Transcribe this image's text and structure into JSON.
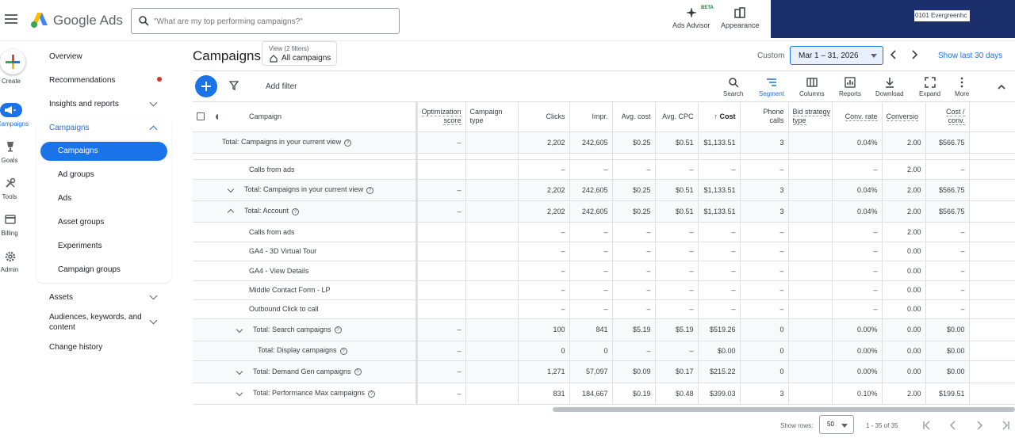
{
  "app": {
    "name": "Google Ads"
  },
  "search": {
    "placeholder": "\"What are my top performing campaigns?\""
  },
  "header_tools": [
    {
      "label": "Ads Advisor",
      "icon": "sparkle-icon",
      "badge": "BETA"
    },
    {
      "label": "Appearance",
      "icon": "appearance-icon"
    }
  ],
  "account": {
    "id_fragment": "0101 Evergreenhc"
  },
  "rail": [
    {
      "label": "Create",
      "icon": "plus-icon"
    },
    {
      "label": "Campaigns",
      "icon": "megaphone-icon"
    },
    {
      "label": "Goals",
      "icon": "trophy-icon"
    },
    {
      "label": "Tools",
      "icon": "tools-icon"
    },
    {
      "label": "Billing",
      "icon": "card-icon"
    },
    {
      "label": "Admin",
      "icon": "gear-icon"
    }
  ],
  "nav": {
    "overview": "Overview",
    "recommendations": "Recommendations",
    "insights": "Insights and reports",
    "campaigns": "Campaigns",
    "sub": [
      "Campaigns",
      "Ad groups",
      "Ads",
      "Asset groups",
      "Experiments",
      "Campaign groups"
    ],
    "assets": "Assets",
    "audiences_line1": "Audiences, keywords, and",
    "audiences_line2": "content",
    "change_history": "Change history"
  },
  "page": {
    "title": "Campaigns",
    "view_label": "View (2 filters)",
    "view_value": "All campaigns",
    "date_label": "Custom",
    "date_range": "Mar 1 – 31, 2026",
    "show_last": "Show last 30 days"
  },
  "toolbar": {
    "add_filter": "Add filter",
    "buttons": [
      "Search",
      "Segment",
      "Columns",
      "Reports",
      "Download",
      "Expand",
      "More"
    ]
  },
  "table": {
    "headers": {
      "campaign": "Campaign",
      "opt_1": "Optimization",
      "opt_2": "score",
      "type_1": "Campaign",
      "type_2": "type",
      "clicks": "Clicks",
      "impr": "Impr.",
      "avg_cost": "Avg. cost",
      "avg_cpc": "Avg. CPC",
      "cost": "Cost",
      "phone_1": "Phone",
      "phone_2": "calls",
      "bid_1": "Bid strategy",
      "bid_2": "type",
      "conv_rate": "Conv. rate",
      "conversions": "Conversio",
      "cpc_1": "Cost /",
      "cpc_2": "conv."
    },
    "rows": [
      {
        "name": "Total: Campaigns in your current view",
        "opt": "–",
        "clicks": "2,202",
        "impr": "242,605",
        "avg_cost": "$0.25",
        "avg_cpc": "$0.51",
        "cost": "$1,133.51",
        "phone": "3",
        "conv_rate": "0.04%",
        "conv": "2.00",
        "cost_conv": "$566.75"
      },
      {
        "name": "Calls from ads",
        "opt": "",
        "clicks": "–",
        "impr": "–",
        "avg_cost": "–",
        "avg_cpc": "–",
        "cost": "–",
        "phone": "–",
        "conv_rate": "–",
        "conv": "2.00",
        "cost_conv": "–"
      },
      {
        "name": "Total: Campaigns in your current view",
        "opt": "–",
        "clicks": "2,202",
        "impr": "242,605",
        "avg_cost": "$0.25",
        "avg_cpc": "$0.51",
        "cost": "$1,133.51",
        "phone": "3",
        "conv_rate": "0.04%",
        "conv": "2.00",
        "cost_conv": "$566.75"
      },
      {
        "name": "Total: Account",
        "opt": "–",
        "clicks": "2,202",
        "impr": "242,605",
        "avg_cost": "$0.25",
        "avg_cpc": "$0.51",
        "cost": "$1,133.51",
        "phone": "3",
        "conv_rate": "0.04%",
        "conv": "2.00",
        "cost_conv": "$566.75"
      },
      {
        "name": "Calls from ads",
        "opt": "",
        "clicks": "–",
        "impr": "–",
        "avg_cost": "–",
        "avg_cpc": "–",
        "cost": "–",
        "phone": "–",
        "conv_rate": "–",
        "conv": "2.00",
        "cost_conv": "–"
      },
      {
        "name": "GA4 - 3D Virtual Tour",
        "opt": "",
        "clicks": "–",
        "impr": "–",
        "avg_cost": "–",
        "avg_cpc": "–",
        "cost": "–",
        "phone": "–",
        "conv_rate": "–",
        "conv": "0.00",
        "cost_conv": "–"
      },
      {
        "name": "GA4 - View Details",
        "opt": "",
        "clicks": "–",
        "impr": "–",
        "avg_cost": "–",
        "avg_cpc": "–",
        "cost": "–",
        "phone": "–",
        "conv_rate": "–",
        "conv": "0.00",
        "cost_conv": "–"
      },
      {
        "name": "Middle Contact Form - LP",
        "opt": "",
        "clicks": "–",
        "impr": "–",
        "avg_cost": "–",
        "avg_cpc": "–",
        "cost": "–",
        "phone": "–",
        "conv_rate": "–",
        "conv": "0.00",
        "cost_conv": "–"
      },
      {
        "name": "Outbound Click to call",
        "opt": "",
        "clicks": "–",
        "impr": "–",
        "avg_cost": "–",
        "avg_cpc": "–",
        "cost": "–",
        "phone": "–",
        "conv_rate": "–",
        "conv": "0.00",
        "cost_conv": "–"
      },
      {
        "name": "Total: Search campaigns",
        "opt": "–",
        "clicks": "100",
        "impr": "841",
        "avg_cost": "$5.19",
        "avg_cpc": "$5.19",
        "cost": "$519.26",
        "phone": "0",
        "conv_rate": "0.00%",
        "conv": "0.00",
        "cost_conv": "$0.00"
      },
      {
        "name": "Total: Display campaigns",
        "opt": "–",
        "clicks": "0",
        "impr": "0",
        "avg_cost": "–",
        "avg_cpc": "–",
        "cost": "$0.00",
        "phone": "0",
        "conv_rate": "0.00%",
        "conv": "0.00",
        "cost_conv": "$0.00"
      },
      {
        "name": "Total: Demand Gen campaigns",
        "opt": "–",
        "clicks": "1,271",
        "impr": "57,097",
        "avg_cost": "$0.09",
        "avg_cpc": "$0.17",
        "cost": "$215.22",
        "phone": "0",
        "conv_rate": "0.00%",
        "conv": "0.00",
        "cost_conv": "$0.00"
      },
      {
        "name": "Total: Performance Max campaigns",
        "opt": "–",
        "clicks": "831",
        "impr": "184,667",
        "avg_cost": "$0.19",
        "avg_cpc": "$0.48",
        "cost": "$399.03",
        "phone": "3",
        "conv_rate": "0.10%",
        "conv": "2.00",
        "cost_conv": "$199.51"
      }
    ]
  },
  "footer": {
    "show_rows_label": "Show rows:",
    "rows_value": "50",
    "range": "1 - 35 of 35"
  },
  "colors": {
    "accent": "#1a73e8",
    "navy": "#1a2f6b",
    "alert": "#d93025"
  }
}
